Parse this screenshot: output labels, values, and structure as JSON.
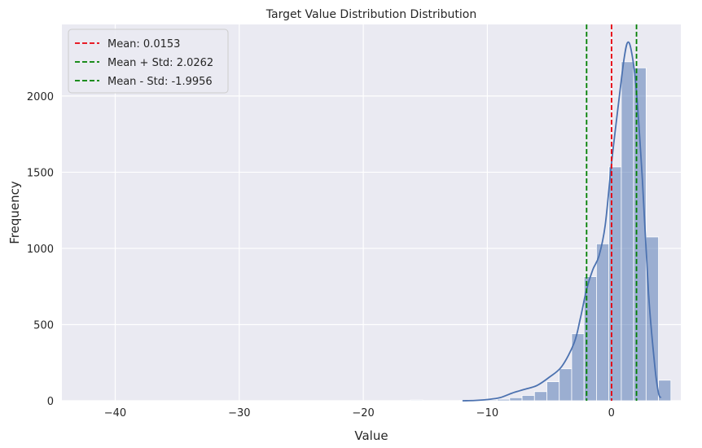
{
  "chart_data": {
    "type": "histogram",
    "title": "Target Value Distribution Distribution",
    "xlabel": "Value",
    "ylabel": "Frequency",
    "xlim": [
      -44.3,
      5.6
    ],
    "ylim": [
      0,
      2470
    ],
    "x_ticks": [
      -40,
      -30,
      -20,
      -10,
      0
    ],
    "y_ticks": [
      0,
      500,
      1000,
      1500,
      2000
    ],
    "grid": true,
    "bin_width": 1.0,
    "bins": [
      {
        "x0": -16.2,
        "x1": -15.2,
        "count": 5
      },
      {
        "x0": -12.2,
        "x1": -11.2,
        "count": 3
      },
      {
        "x0": -11.2,
        "x1": -10.2,
        "count": 4
      },
      {
        "x0": -10.2,
        "x1": -9.2,
        "count": 6
      },
      {
        "x0": -9.2,
        "x1": -8.2,
        "count": 10
      },
      {
        "x0": -8.2,
        "x1": -7.2,
        "count": 20
      },
      {
        "x0": -7.2,
        "x1": -6.2,
        "count": 35
      },
      {
        "x0": -6.2,
        "x1": -5.2,
        "count": 60
      },
      {
        "x0": -5.2,
        "x1": -4.2,
        "count": 125
      },
      {
        "x0": -4.2,
        "x1": -3.2,
        "count": 210
      },
      {
        "x0": -3.2,
        "x1": -2.2,
        "count": 440
      },
      {
        "x0": -2.2,
        "x1": -1.2,
        "count": 815
      },
      {
        "x0": -1.2,
        "x1": -0.2,
        "count": 1030
      },
      {
        "x0": -0.2,
        "x1": 0.8,
        "count": 1535
      },
      {
        "x0": 0.8,
        "x1": 1.8,
        "count": 2225
      },
      {
        "x0": 1.8,
        "x1": 2.8,
        "count": 2185
      },
      {
        "x0": 2.8,
        "x1": 3.8,
        "count": 1075
      },
      {
        "x0": 3.8,
        "x1": 4.8,
        "count": 135
      }
    ],
    "kde": {
      "x": [
        -12,
        -11,
        -10,
        -9,
        -8,
        -7,
        -6,
        -5,
        -4,
        -3,
        -2.5,
        -2,
        -1.5,
        -1,
        -0.5,
        0,
        0.5,
        1,
        1.3,
        1.6,
        2,
        2.5,
        3,
        3.5,
        3.8,
        4
      ],
      "y": [
        0,
        2,
        8,
        20,
        50,
        75,
        100,
        155,
        225,
        380,
        540,
        730,
        860,
        950,
        1150,
        1550,
        1900,
        2230,
        2350,
        2300,
        2050,
        1450,
        700,
        230,
        50,
        20
      ]
    },
    "reference_lines": [
      {
        "label": "Mean: 0.0153",
        "x": 0.0153,
        "color": "#e8000b"
      },
      {
        "label": "Mean + Std: 2.0262",
        "x": 2.0262,
        "color": "#008000"
      },
      {
        "label": "Mean - Std: -1.9956",
        "x": -1.9956,
        "color": "#008000"
      }
    ],
    "legend_position": "top-left",
    "colors": {
      "background": "#eaeaf2",
      "grid": "#ffffff",
      "bar_fill": "#4c72b0",
      "kde_line": "#4c72b0"
    }
  }
}
